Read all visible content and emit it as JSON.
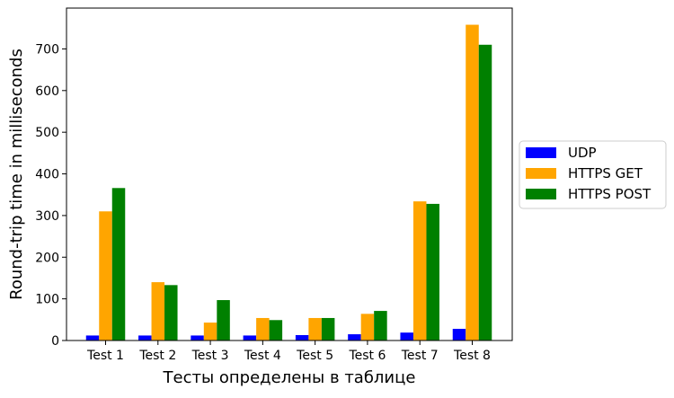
{
  "chart_data": {
    "type": "bar",
    "title": "",
    "xlabel": "Тесты определены в таблице",
    "ylabel": "Round-trip time in milliseconds",
    "categories": [
      "Test 1",
      "Test 2",
      "Test 3",
      "Test 4",
      "Test 5",
      "Test 6",
      "Test 7",
      "Test 8"
    ],
    "ylim": [
      0,
      798
    ],
    "yticks": [
      0,
      100,
      200,
      300,
      400,
      500,
      600,
      700
    ],
    "grid": false,
    "legend_position": "center-right-outside",
    "series": [
      {
        "name": "UDP",
        "color": "#0000ff",
        "values": [
          12,
          12,
          12,
          12,
          13,
          15,
          19,
          28
        ]
      },
      {
        "name": "HTTPS GET",
        "color": "#ffa500",
        "values": [
          310,
          140,
          43,
          54,
          54,
          64,
          334,
          758
        ]
      },
      {
        "name": "HTTPS POST",
        "color": "#008000",
        "values": [
          366,
          133,
          97,
          49,
          54,
          71,
          328,
          710
        ]
      }
    ]
  }
}
